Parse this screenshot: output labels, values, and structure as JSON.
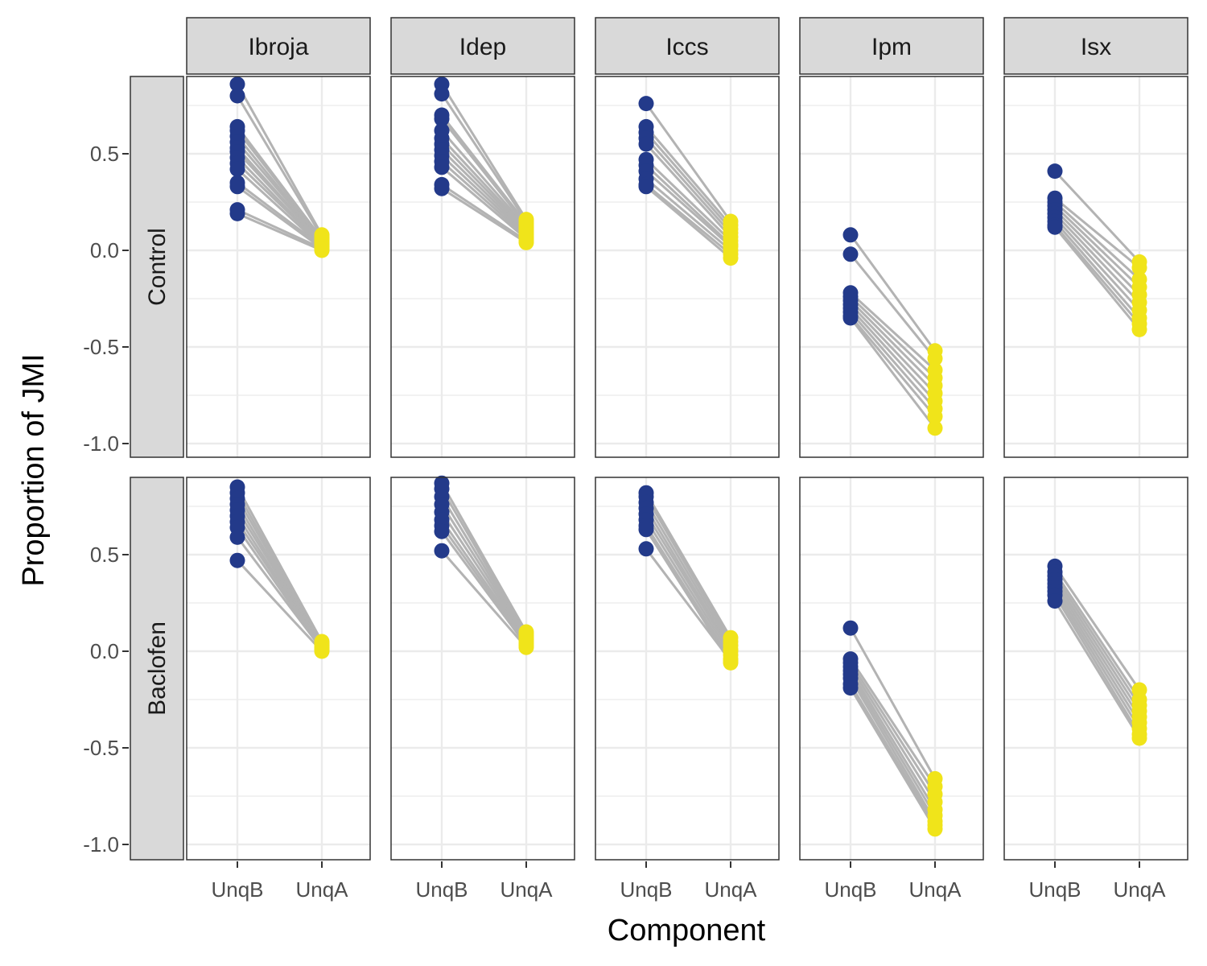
{
  "chart_data": {
    "type": "scatter",
    "subtype": "faceted paired dot plot",
    "xlabel": "Component",
    "ylabel": "Proportion of JMI",
    "x_categories": [
      "UnqB",
      "UnqA"
    ],
    "ylim": [
      -1.0,
      0.9
    ],
    "y_ticks": [
      0.5,
      0.0,
      -0.5,
      -1.0
    ],
    "y_tick_labels": [
      "0.5",
      "0.0",
      "-0.5",
      "-1.0"
    ],
    "column_facets": [
      "Ibroja",
      "Idep",
      "Iccs",
      "Ipm",
      "Isx"
    ],
    "row_facets": [
      "Control",
      "Baclofen"
    ],
    "colors": {
      "UnqB": "#233a8a",
      "UnqA": "#f0e41a",
      "pair_line": "#b3b3b3",
      "strip_fill": "#d9d9d9",
      "grid": "#ebebeb"
    },
    "panels": [
      {
        "row": "Control",
        "col": "Ibroja",
        "pairs": [
          [
            0.86,
            0.08
          ],
          [
            0.8,
            0.07
          ],
          [
            0.64,
            0.06
          ],
          [
            0.62,
            0.06
          ],
          [
            0.59,
            0.05
          ],
          [
            0.56,
            0.05
          ],
          [
            0.53,
            0.04
          ],
          [
            0.51,
            0.04
          ],
          [
            0.48,
            0.03
          ],
          [
            0.45,
            0.03
          ],
          [
            0.42,
            0.02
          ],
          [
            0.35,
            0.02
          ],
          [
            0.33,
            0.01
          ],
          [
            0.21,
            0.01
          ],
          [
            0.19,
            0.0
          ]
        ]
      },
      {
        "row": "Control",
        "col": "Idep",
        "pairs": [
          [
            0.86,
            0.16
          ],
          [
            0.81,
            0.15
          ],
          [
            0.7,
            0.14
          ],
          [
            0.68,
            0.13
          ],
          [
            0.62,
            0.12
          ],
          [
            0.58,
            0.11
          ],
          [
            0.55,
            0.1
          ],
          [
            0.52,
            0.09
          ],
          [
            0.49,
            0.08
          ],
          [
            0.46,
            0.07
          ],
          [
            0.43,
            0.06
          ],
          [
            0.34,
            0.05
          ],
          [
            0.32,
            0.04
          ]
        ]
      },
      {
        "row": "Control",
        "col": "Iccs",
        "pairs": [
          [
            0.76,
            0.15
          ],
          [
            0.64,
            0.13
          ],
          [
            0.61,
            0.11
          ],
          [
            0.58,
            0.09
          ],
          [
            0.55,
            0.07
          ],
          [
            0.47,
            0.05
          ],
          [
            0.44,
            0.03
          ],
          [
            0.41,
            0.02
          ],
          [
            0.37,
            0.0
          ],
          [
            0.34,
            -0.02
          ],
          [
            0.33,
            -0.04
          ]
        ]
      },
      {
        "row": "Control",
        "col": "Ipm",
        "pairs": [
          [
            0.08,
            -0.52
          ],
          [
            -0.02,
            -0.56
          ],
          [
            -0.22,
            -0.62
          ],
          [
            -0.24,
            -0.66
          ],
          [
            -0.26,
            -0.7
          ],
          [
            -0.28,
            -0.74
          ],
          [
            -0.3,
            -0.78
          ],
          [
            -0.32,
            -0.82
          ],
          [
            -0.34,
            -0.86
          ],
          [
            -0.35,
            -0.92
          ]
        ]
      },
      {
        "row": "Control",
        "col": "Isx",
        "pairs": [
          [
            0.41,
            -0.06
          ],
          [
            0.27,
            -0.09
          ],
          [
            0.25,
            -0.15
          ],
          [
            0.23,
            -0.19
          ],
          [
            0.21,
            -0.23
          ],
          [
            0.19,
            -0.27
          ],
          [
            0.17,
            -0.31
          ],
          [
            0.15,
            -0.35
          ],
          [
            0.13,
            -0.38
          ],
          [
            0.12,
            -0.41
          ]
        ]
      },
      {
        "row": "Baclofen",
        "col": "Ibroja",
        "pairs": [
          [
            0.85,
            0.05
          ],
          [
            0.82,
            0.04
          ],
          [
            0.79,
            0.04
          ],
          [
            0.76,
            0.03
          ],
          [
            0.73,
            0.03
          ],
          [
            0.7,
            0.02
          ],
          [
            0.67,
            0.02
          ],
          [
            0.64,
            0.01
          ],
          [
            0.59,
            0.01
          ],
          [
            0.47,
            0.0
          ]
        ]
      },
      {
        "row": "Baclofen",
        "col": "Idep",
        "pairs": [
          [
            0.87,
            0.1
          ],
          [
            0.84,
            0.09
          ],
          [
            0.8,
            0.08
          ],
          [
            0.76,
            0.07
          ],
          [
            0.72,
            0.06
          ],
          [
            0.68,
            0.05
          ],
          [
            0.65,
            0.04
          ],
          [
            0.62,
            0.03
          ],
          [
            0.52,
            0.02
          ]
        ]
      },
      {
        "row": "Baclofen",
        "col": "Iccs",
        "pairs": [
          [
            0.82,
            0.07
          ],
          [
            0.8,
            0.05
          ],
          [
            0.77,
            0.03
          ],
          [
            0.74,
            0.01
          ],
          [
            0.71,
            0.0
          ],
          [
            0.68,
            -0.02
          ],
          [
            0.65,
            -0.04
          ],
          [
            0.63,
            -0.06
          ],
          [
            0.53,
            -0.05
          ]
        ]
      },
      {
        "row": "Baclofen",
        "col": "Ipm",
        "pairs": [
          [
            0.12,
            -0.66
          ],
          [
            -0.04,
            -0.7
          ],
          [
            -0.06,
            -0.74
          ],
          [
            -0.08,
            -0.78
          ],
          [
            -0.1,
            -0.82
          ],
          [
            -0.12,
            -0.85
          ],
          [
            -0.14,
            -0.88
          ],
          [
            -0.17,
            -0.9
          ],
          [
            -0.19,
            -0.92
          ]
        ]
      },
      {
        "row": "Baclofen",
        "col": "Isx",
        "pairs": [
          [
            0.44,
            -0.2
          ],
          [
            0.41,
            -0.25
          ],
          [
            0.39,
            -0.28
          ],
          [
            0.37,
            -0.31
          ],
          [
            0.35,
            -0.34
          ],
          [
            0.33,
            -0.37
          ],
          [
            0.31,
            -0.4
          ],
          [
            0.29,
            -0.43
          ],
          [
            0.26,
            -0.45
          ]
        ]
      }
    ]
  }
}
